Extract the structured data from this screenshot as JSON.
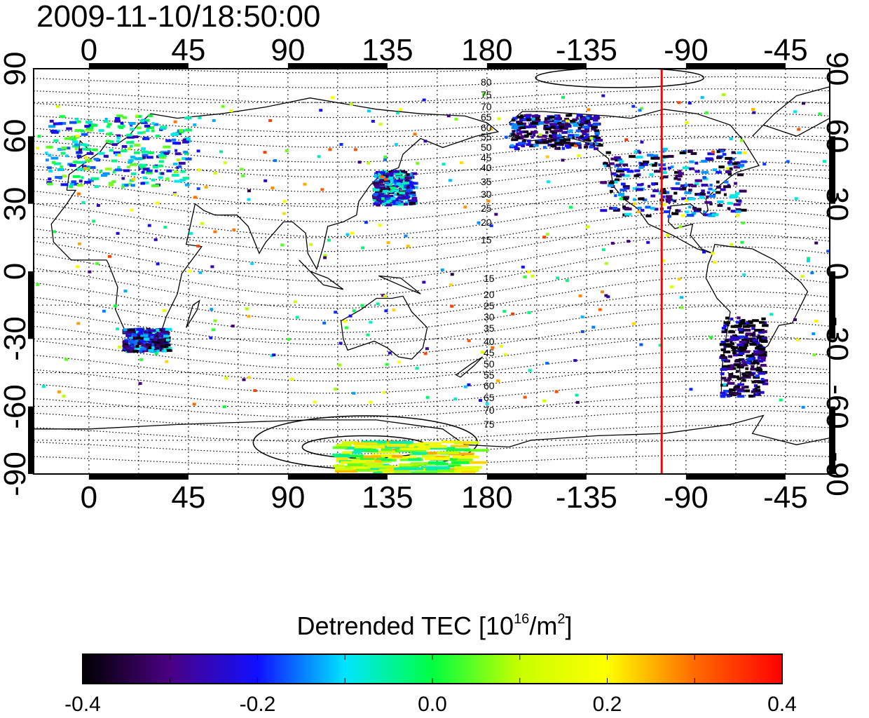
{
  "title": "2009-11-10/18:50:00",
  "colorbar": {
    "label_main": "Detrended TEC  [10",
    "label_exp": "16",
    "label_unit": "/m",
    "label_exp2": "2",
    "label_close": "]",
    "ticks": [
      "-0.4",
      "-0.2",
      "0.0",
      "0.2",
      "0.4"
    ],
    "range": [
      -0.4,
      0.4
    ],
    "colormap": [
      "#000000",
      "#4b0082",
      "#1010ff",
      "#00e5ff",
      "#00ff40",
      "#c8ff00",
      "#ffff00",
      "#ff6a00",
      "#ff0000"
    ]
  },
  "chart_data": {
    "type": "heatmap",
    "title": "2009-11-10/18:50:00",
    "x_ticks": [
      "0",
      "45",
      "90",
      "135",
      "180",
      "-135",
      "-90",
      "-45"
    ],
    "y_ticks_left": [
      "90",
      "60",
      "30",
      "0",
      "-30",
      "-60",
      "-90"
    ],
    "y_ticks_right": [
      "90",
      "60",
      "30",
      "0",
      "-30",
      "-60",
      "-90"
    ],
    "xlim": [
      -25,
      335
    ],
    "ylim": [
      -90,
      90
    ],
    "grid": true,
    "marker_longitude": -101,
    "marker_color": "#ff0000",
    "contour_labels_north": [
      "80",
      "75",
      "70",
      "65",
      "60",
      "55",
      "50",
      "45",
      "40",
      "35",
      "30",
      "25",
      "20",
      "15"
    ],
    "contour_labels_south": [
      "15",
      "20",
      "25",
      "30",
      "35",
      "40",
      "45",
      "50",
      "55",
      "60",
      "65",
      "70",
      "75"
    ],
    "value_range": [
      -0.4,
      0.4
    ],
    "dense_regions": [
      {
        "name": "Europe",
        "lon": [
          -20,
          45
        ],
        "lat": [
          38,
          70
        ],
        "value": -0.1
      },
      {
        "name": "North America",
        "lon": [
          -130,
          -65
        ],
        "lat": [
          25,
          55
        ],
        "value": -0.25
      },
      {
        "name": "Alaska",
        "lon": [
          -170,
          -130
        ],
        "lat": [
          55,
          70
        ],
        "value": -0.3
      },
      {
        "name": "Japan",
        "lon": [
          128,
          146
        ],
        "lat": [
          30,
          45
        ],
        "value": -0.2
      },
      {
        "name": "South America",
        "lon": [
          -75,
          -55
        ],
        "lat": [
          -55,
          -20
        ],
        "value": -0.35
      },
      {
        "name": "Southern Africa",
        "lon": [
          15,
          35
        ],
        "lat": [
          -35,
          -25
        ],
        "value": -0.25
      },
      {
        "name": "Antarctica",
        "lon": [
          110,
          170
        ],
        "lat": [
          -90,
          -75
        ],
        "value": 0.1
      }
    ]
  }
}
